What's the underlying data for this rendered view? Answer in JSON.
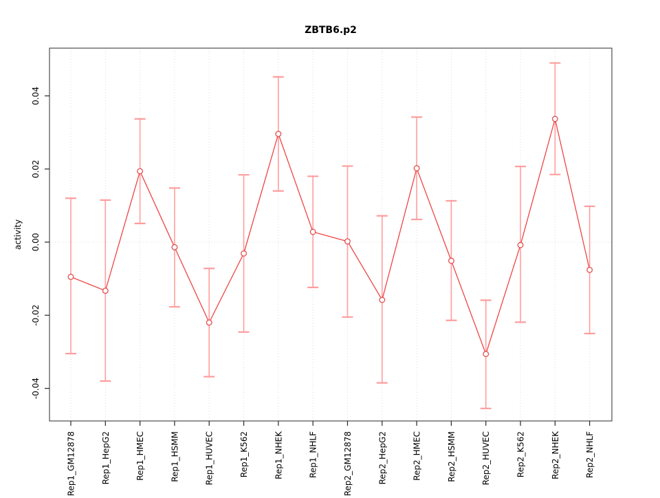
{
  "chart_data": {
    "type": "line",
    "title": "ZBTB6.p2",
    "ylabel": "activity",
    "xlabel": "",
    "categories": [
      "Rep1_GM12878",
      "Rep1_HepG2",
      "Rep1_HMEC",
      "Rep1_HSMM",
      "Rep1_HUVEC",
      "Rep1_K562",
      "Rep1_NHEK",
      "Rep1_NHLF",
      "Rep2_GM12878",
      "Rep2_HepG2",
      "Rep2_HMEC",
      "Rep2_HSMM",
      "Rep2_HUVEC",
      "Rep2_K562",
      "Rep2_NHEK",
      "Rep2_NHLF"
    ],
    "series": [
      {
        "name": "activity",
        "values": [
          -0.0095,
          -0.0133,
          0.0194,
          -0.0014,
          -0.022,
          -0.0031,
          0.0296,
          0.0028,
          0.0002,
          -0.0158,
          0.0202,
          -0.0051,
          -0.0306,
          -0.0008,
          0.0337,
          -0.0076
        ],
        "error_upper": [
          0.012,
          0.0115,
          0.0337,
          0.0148,
          -0.0072,
          0.0184,
          0.0452,
          0.018,
          0.0208,
          0.0072,
          0.0342,
          0.0113,
          -0.0159,
          0.0207,
          0.049,
          0.0098
        ],
        "error_lower": [
          -0.0305,
          -0.038,
          0.0051,
          -0.0177,
          -0.0368,
          -0.0246,
          0.014,
          -0.0124,
          -0.0205,
          -0.0385,
          0.0062,
          -0.0214,
          -0.0455,
          -0.0219,
          0.0185,
          -0.025
        ]
      }
    ],
    "yticks": {
      "values": [
        -0.04,
        -0.02,
        0.0,
        0.02,
        0.04
      ],
      "labels": [
        "-0.04",
        "-0.02",
        "0.00",
        "0.02",
        "0.04"
      ]
    },
    "ylim": [
      -0.0493,
      0.053
    ],
    "grid": {
      "vertical_dotted_per_category": true,
      "horizontal_dotted_at_zero": true
    },
    "legend": "none",
    "marker": "open-circle",
    "colors": {
      "line": "#ef4444",
      "error_bar": "#ff9d9d",
      "marker_stroke": "#e34c4c",
      "marker_fill": "#ffffff",
      "grid": "#dadada",
      "box": "#4d4d4d",
      "tick": "#262626",
      "text": "#000000",
      "background": "#ffffff"
    }
  }
}
